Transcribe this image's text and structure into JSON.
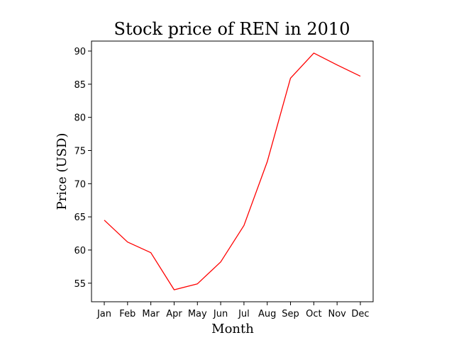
{
  "chart_data": {
    "type": "line",
    "title": "Stock price of REN in 2010",
    "xlabel": "Month",
    "ylabel": "Price (USD)",
    "categories": [
      "Jan",
      "Feb",
      "Mar",
      "Apr",
      "May",
      "Jun",
      "Jul",
      "Aug",
      "Sep",
      "Oct",
      "Nov",
      "Dec"
    ],
    "series": [
      {
        "values": [
          64.5,
          61.2,
          59.6,
          54.0,
          54.9,
          58.2,
          63.7,
          73.3,
          85.9,
          89.7,
          87.9,
          86.2
        ],
        "color": "#ff0000"
      }
    ],
    "yticks": [
      55,
      60,
      65,
      70,
      75,
      80,
      85,
      90
    ],
    "ylim": [
      52.2,
      91.5
    ],
    "grid": false,
    "legend": "none"
  }
}
